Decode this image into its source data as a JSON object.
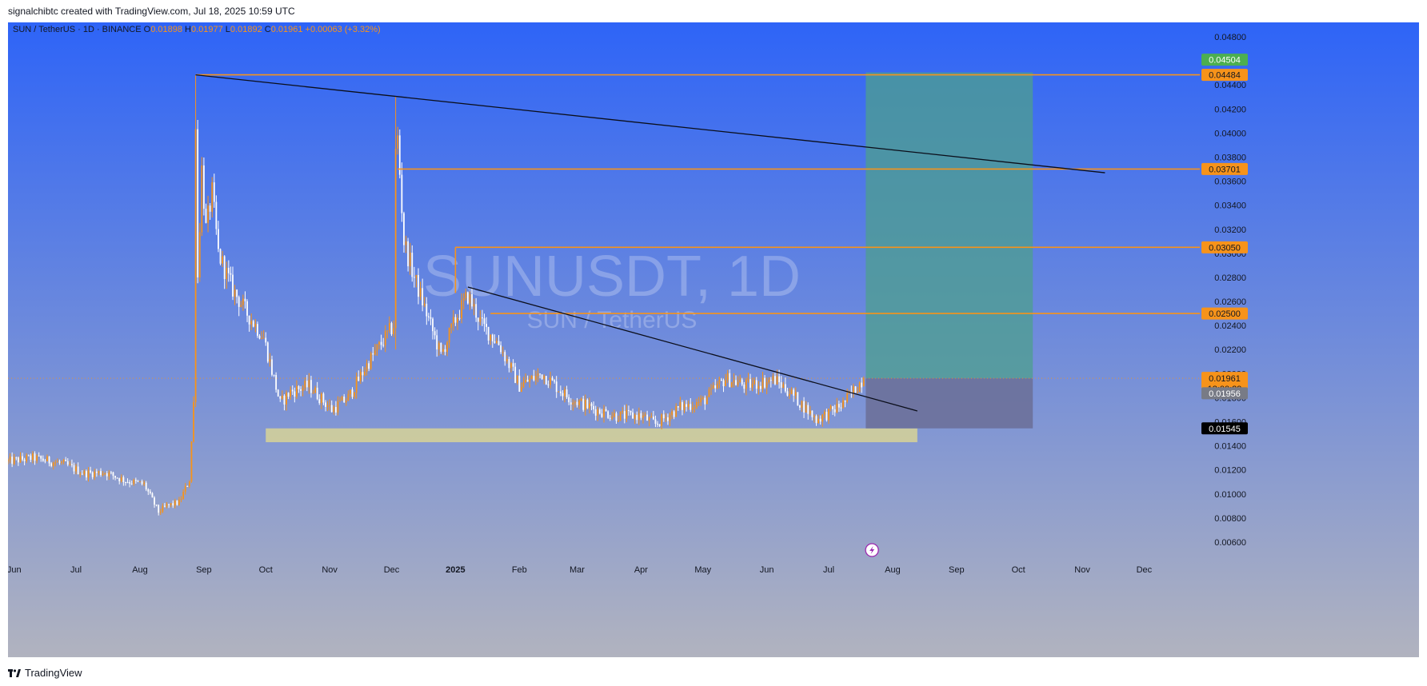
{
  "credit": "signalchibtc created with TradingView.com, Jul 18, 2025 10:59 UTC",
  "brand": "TradingView",
  "legend": {
    "symbol": "SUN / TetherUS · 1D · BINANCE",
    "o_label": "O",
    "o_value": "0.01898",
    "h_label": "H",
    "h_value": "0.01977",
    "l_label": "L",
    "l_value": "0.01892",
    "c_label": "C",
    "c_value": "0.01961",
    "change": "+0.00063 (+3.32%)"
  },
  "watermark": {
    "main": "SUNUSDT, 1D",
    "sub": "SUN / TetherUS"
  },
  "colors": {
    "bg_top": "#2e64f7",
    "bg_bottom": "#b1b3bf",
    "accent": "#f7931a",
    "up": "#f7931a",
    "down": "#ffffff",
    "trend": "#0b0e1a",
    "support": "#d7d296",
    "target": "#4e9f8e",
    "stop": "#6b6f96",
    "green_tag": "#4caf50",
    "gray_tag": "#787b86",
    "black_tag": "#000000"
  },
  "chart_data": {
    "type": "candlestick",
    "x_axis_labels": [
      {
        "label": "Jun",
        "date": "2024-06-01",
        "bold": false
      },
      {
        "label": "Jul",
        "date": "2024-07-01",
        "bold": false
      },
      {
        "label": "Aug",
        "date": "2024-08-01",
        "bold": false
      },
      {
        "label": "Sep",
        "date": "2024-09-01",
        "bold": false
      },
      {
        "label": "Oct",
        "date": "2024-10-01",
        "bold": false
      },
      {
        "label": "Nov",
        "date": "2024-11-01",
        "bold": false
      },
      {
        "label": "Dec",
        "date": "2024-12-01",
        "bold": false
      },
      {
        "label": "2025",
        "date": "2025-01-01",
        "bold": true
      },
      {
        "label": "Feb",
        "date": "2025-02-01",
        "bold": false
      },
      {
        "label": "Mar",
        "date": "2025-03-01",
        "bold": false
      },
      {
        "label": "Apr",
        "date": "2025-04-01",
        "bold": false
      },
      {
        "label": "May",
        "date": "2025-05-01",
        "bold": false
      },
      {
        "label": "Jun",
        "date": "2025-06-01",
        "bold": false
      },
      {
        "label": "Jul",
        "date": "2025-07-01",
        "bold": false
      },
      {
        "label": "Aug",
        "date": "2025-08-01",
        "bold": false
      },
      {
        "label": "Sep",
        "date": "2025-09-01",
        "bold": false
      },
      {
        "label": "Oct",
        "date": "2025-10-01",
        "bold": false
      },
      {
        "label": "Nov",
        "date": "2025-11-01",
        "bold": false
      },
      {
        "label": "Dec",
        "date": "2025-12-01",
        "bold": false
      }
    ],
    "x_range": [
      "2024-05-29",
      "2025-12-28"
    ],
    "y_range": [
      0.0048,
      0.0492
    ],
    "y_ticks": [
      "0.04800",
      "0.04400",
      "0.04200",
      "0.04000",
      "0.03800",
      "0.03600",
      "0.03400",
      "0.03200",
      "0.03000",
      "0.02800",
      "0.02600",
      "0.02400",
      "0.02200",
      "0.02000",
      "0.01800",
      "0.01600",
      "0.01400",
      "0.01200",
      "0.01000",
      "0.00800",
      "0.00600"
    ],
    "price_path": [
      [
        "2024-05-29",
        0.0127
      ],
      [
        "2024-06-10",
        0.013
      ],
      [
        "2024-06-25",
        0.0125
      ],
      [
        "2024-07-05",
        0.0117
      ],
      [
        "2024-07-15",
        0.0118
      ],
      [
        "2024-07-25",
        0.0111
      ],
      [
        "2024-08-03",
        0.0108
      ],
      [
        "2024-08-10",
        0.0085
      ],
      [
        "2024-08-14",
        0.009
      ],
      [
        "2024-08-20",
        0.0093
      ],
      [
        "2024-08-25",
        0.0112
      ],
      [
        "2024-08-27",
        0.0175
      ],
      [
        "2024-08-29",
        0.028
      ],
      [
        "2024-08-31",
        0.037
      ],
      [
        "2024-09-02",
        0.032
      ],
      [
        "2024-09-05",
        0.035
      ],
      [
        "2024-09-08",
        0.03
      ],
      [
        "2024-09-15",
        0.027
      ],
      [
        "2024-09-22",
        0.025
      ],
      [
        "2024-09-30",
        0.023
      ],
      [
        "2024-10-08",
        0.0175
      ],
      [
        "2024-10-13",
        0.0185
      ],
      [
        "2024-10-22",
        0.019
      ],
      [
        "2024-11-02",
        0.017
      ],
      [
        "2024-11-10",
        0.018
      ],
      [
        "2024-11-20",
        0.021
      ],
      [
        "2024-11-28",
        0.023
      ],
      [
        "2024-12-02",
        0.024
      ],
      [
        "2024-12-04",
        0.0395
      ],
      [
        "2024-12-07",
        0.031
      ],
      [
        "2024-12-12",
        0.028
      ],
      [
        "2024-12-18",
        0.025
      ],
      [
        "2024-12-25",
        0.0215
      ],
      [
        "2025-01-01",
        0.0245
      ],
      [
        "2025-01-07",
        0.0265
      ],
      [
        "2025-01-14",
        0.024
      ],
      [
        "2025-01-22",
        0.0225
      ],
      [
        "2025-02-01",
        0.019
      ],
      [
        "2025-02-12",
        0.02
      ],
      [
        "2025-02-25",
        0.018
      ],
      [
        "2025-03-10",
        0.017
      ],
      [
        "2025-03-20",
        0.0165
      ],
      [
        "2025-04-01",
        0.0165
      ],
      [
        "2025-04-08",
        0.0158
      ],
      [
        "2025-04-20",
        0.0172
      ],
      [
        "2025-05-01",
        0.0177
      ],
      [
        "2025-05-12",
        0.0196
      ],
      [
        "2025-05-22",
        0.019
      ],
      [
        "2025-06-05",
        0.0195
      ],
      [
        "2025-06-12",
        0.0185
      ],
      [
        "2025-06-25",
        0.0162
      ],
      [
        "2025-07-01",
        0.0167
      ],
      [
        "2025-07-08",
        0.0175
      ],
      [
        "2025-07-15",
        0.019
      ],
      [
        "2025-07-18",
        0.0196
      ]
    ],
    "spikes": [
      {
        "date": "2024-08-28",
        "high": 0.0448,
        "low": 0.025
      },
      {
        "date": "2024-12-03",
        "high": 0.043,
        "low": 0.022
      }
    ],
    "horizontal_levels": [
      {
        "from": "2024-08-28",
        "y": 0.04484
      },
      {
        "from": "2024-12-04",
        "y": 0.03701
      },
      {
        "from": "2025-01-01",
        "y": 0.0305,
        "drop_to": 0.0267
      },
      {
        "from": "2025-01-18",
        "y": 0.025
      }
    ],
    "trendlines": [
      {
        "x1": "2024-08-28",
        "y1": 0.04484,
        "x2": "2025-11-12",
        "y2": 0.0367
      },
      {
        "x1": "2025-01-07",
        "y1": 0.0272,
        "x2": "2025-08-13",
        "y2": 0.0169
      }
    ],
    "support_zone": {
      "x1": "2024-10-01",
      "x2": "2025-08-13",
      "y_top": 0.01545,
      "y_bottom": 0.0143
    },
    "position": {
      "x1": "2025-07-19",
      "x2": "2025-10-08",
      "target": 0.04504,
      "entry": 0.01961,
      "stop": 0.01545
    },
    "last_price_line": 0.01961,
    "price_tags": [
      {
        "y": 0.04504,
        "text": "0.04504",
        "style": "green"
      },
      {
        "y": 0.04484,
        "text": "0.04484",
        "style": "orange"
      },
      {
        "y": 0.03701,
        "text": "0.03701",
        "style": "orange"
      },
      {
        "y": 0.0305,
        "text": "0.03050",
        "style": "orange"
      },
      {
        "y": 0.025,
        "text": "0.02500",
        "style": "orange"
      },
      {
        "y": 0.01961,
        "text": "0.01961",
        "style": "orange-double",
        "text2": "13:00:29"
      },
      {
        "y": 0.01956,
        "text": "0.01956",
        "style": "gray",
        "offset": 18
      },
      {
        "y": 0.01545,
        "text": "0.01545",
        "style": "black"
      }
    ]
  }
}
